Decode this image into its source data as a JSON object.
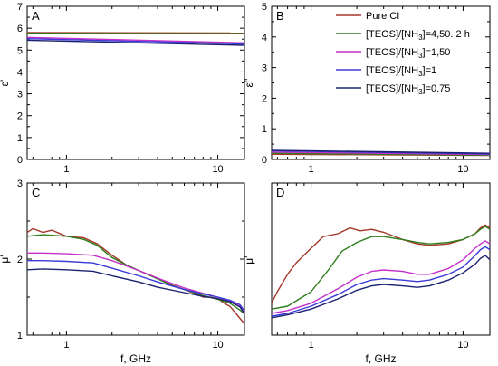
{
  "colors": {
    "pure_ci": "#a5382a",
    "teos_450_2h": "#2e7d1c",
    "teos_150": "#c531c8",
    "teos_1": "#3a3ad8",
    "teos_075": "#1b2370"
  },
  "legend": {
    "items": [
      {
        "label": "Pure CI",
        "color_key": "pure_ci"
      },
      {
        "label": "[TEOS]/[NH3]=4,50. 2 h",
        "color_key": "teos_450_2h"
      },
      {
        "label": "[TEOS]/[NH3]=1,50",
        "color_key": "teos_150"
      },
      {
        "label": "[TEOS]/[NH3]=1",
        "color_key": "teos_1"
      },
      {
        "label": "[TEOS]/[NH3]=0.75",
        "color_key": "teos_075"
      }
    ]
  },
  "chart_data": [
    {
      "type": "line",
      "panel_label": "A",
      "ylabel": "ε'",
      "xlabel": "",
      "x_scale": "log",
      "xlim": [
        0.55,
        15
      ],
      "ylim": [
        0,
        7
      ],
      "x_ticks": [
        1,
        10
      ],
      "y_ticks": [
        0,
        1,
        2,
        3,
        4,
        5,
        6,
        7
      ],
      "series": [
        {
          "name": "Pure CI",
          "x": [
            0.55,
            15
          ],
          "y": [
            5.8,
            5.78
          ]
        },
        {
          "name": "[TEOS]/[NH3]=4,50. 2 h",
          "x": [
            0.55,
            15
          ],
          "y": [
            5.77,
            5.75
          ]
        },
        {
          "name": "[TEOS]/[NH3]=1,50",
          "x": [
            0.55,
            15
          ],
          "y": [
            5.58,
            5.33
          ]
        },
        {
          "name": "[TEOS]/[NH3]=1",
          "x": [
            0.55,
            15
          ],
          "y": [
            5.52,
            5.28
          ]
        },
        {
          "name": "[TEOS]/[NH3]=0.75",
          "x": [
            0.55,
            15
          ],
          "y": [
            5.45,
            5.22
          ]
        }
      ]
    },
    {
      "type": "line",
      "panel_label": "B",
      "ylabel": "ε''",
      "xlabel": "",
      "x_scale": "log",
      "xlim": [
        0.55,
        15
      ],
      "ylim": [
        0,
        5
      ],
      "x_ticks": [
        1,
        10
      ],
      "y_ticks": [
        0,
        1,
        2,
        3,
        4,
        5
      ],
      "series": [
        {
          "name": "Pure CI",
          "x": [
            0.55,
            15
          ],
          "y": [
            0.17,
            0.13
          ]
        },
        {
          "name": "[TEOS]/[NH3]=4,50. 2 h",
          "x": [
            0.55,
            15
          ],
          "y": [
            0.2,
            0.14
          ]
        },
        {
          "name": "[TEOS]/[NH3]=1,50",
          "x": [
            0.55,
            15
          ],
          "y": [
            0.24,
            0.16
          ]
        },
        {
          "name": "[TEOS]/[NH3]=1",
          "x": [
            0.55,
            15
          ],
          "y": [
            0.28,
            0.18
          ]
        },
        {
          "name": "[TEOS]/[NH3]=0.75",
          "x": [
            0.55,
            15
          ],
          "y": [
            0.3,
            0.2
          ]
        }
      ]
    },
    {
      "type": "line",
      "panel_label": "C",
      "ylabel": "μ'",
      "xlabel": "f, GHz",
      "x_scale": "log",
      "xlim": [
        0.55,
        15
      ],
      "ylim": [
        1,
        3
      ],
      "x_ticks": [
        1,
        10
      ],
      "y_ticks": [
        1,
        2,
        3
      ],
      "series": [
        {
          "name": "Pure CI",
          "x": [
            0.55,
            0.6,
            0.7,
            0.8,
            1,
            1.3,
            1.6,
            2,
            2.5,
            3,
            4,
            5,
            6,
            7,
            8,
            9,
            10,
            11,
            12,
            13,
            14,
            15
          ],
          "y": [
            2.35,
            2.4,
            2.35,
            2.38,
            2.3,
            2.28,
            2.2,
            2.05,
            1.92,
            1.85,
            1.75,
            1.66,
            1.6,
            1.55,
            1.5,
            1.5,
            1.48,
            1.42,
            1.38,
            1.3,
            1.22,
            1.15
          ]
        },
        {
          "name": "[TEOS]/[NH3]=4,50. 2 h",
          "x": [
            0.55,
            0.7,
            1,
            1.3,
            1.6,
            2,
            2.5,
            3,
            4,
            5,
            6,
            8,
            10,
            12,
            14,
            15
          ],
          "y": [
            2.3,
            2.32,
            2.3,
            2.26,
            2.18,
            2.02,
            1.92,
            1.85,
            1.74,
            1.65,
            1.6,
            1.52,
            1.47,
            1.42,
            1.33,
            1.28
          ]
        },
        {
          "name": "[TEOS]/[NH3]=1,50",
          "x": [
            0.55,
            0.7,
            1,
            1.5,
            2,
            3,
            4,
            6,
            8,
            10,
            12,
            14,
            15
          ],
          "y": [
            2.08,
            2.08,
            2.07,
            2.05,
            1.98,
            1.85,
            1.75,
            1.62,
            1.55,
            1.5,
            1.45,
            1.38,
            1.3
          ]
        },
        {
          "name": "[TEOS]/[NH3]=1",
          "x": [
            0.55,
            0.7,
            1,
            1.5,
            2,
            3,
            4,
            6,
            8,
            10,
            12,
            14,
            15
          ],
          "y": [
            1.98,
            1.98,
            1.97,
            1.95,
            1.88,
            1.78,
            1.7,
            1.6,
            1.54,
            1.5,
            1.46,
            1.4,
            1.32
          ]
        },
        {
          "name": "[TEOS]/[NH3]=0.75",
          "x": [
            0.55,
            0.7,
            1,
            1.5,
            2,
            3,
            4,
            6,
            8,
            10,
            12,
            14,
            15
          ],
          "y": [
            1.86,
            1.87,
            1.86,
            1.84,
            1.78,
            1.7,
            1.63,
            1.56,
            1.51,
            1.48,
            1.44,
            1.37,
            1.28
          ]
        }
      ]
    },
    {
      "type": "line",
      "panel_label": "D",
      "ylabel": "μ''",
      "xlabel": "f, GHz",
      "x_scale": "log",
      "xlim": [
        0.55,
        15
      ],
      "ylim": [
        0,
        1.05
      ],
      "x_ticks": [
        1,
        10
      ],
      "y_ticks": [],
      "series": [
        {
          "name": "Pure CI",
          "x": [
            0.55,
            0.6,
            0.7,
            0.8,
            1,
            1.2,
            1.5,
            1.8,
            2.1,
            2.5,
            3,
            4,
            5,
            6,
            8,
            10,
            12,
            13,
            14,
            15
          ],
          "y": [
            0.22,
            0.3,
            0.42,
            0.5,
            0.6,
            0.68,
            0.7,
            0.74,
            0.72,
            0.73,
            0.71,
            0.66,
            0.63,
            0.62,
            0.63,
            0.66,
            0.7,
            0.74,
            0.76,
            0.74
          ]
        },
        {
          "name": "[TEOS]/[NH3]=4,50. 2 h",
          "x": [
            0.55,
            0.7,
            1,
            1.3,
            1.6,
            2,
            2.5,
            3,
            4,
            5,
            6,
            8,
            10,
            12,
            13,
            14,
            15
          ],
          "y": [
            0.18,
            0.2,
            0.3,
            0.45,
            0.58,
            0.64,
            0.68,
            0.68,
            0.66,
            0.64,
            0.63,
            0.64,
            0.66,
            0.7,
            0.73,
            0.75,
            0.73
          ]
        },
        {
          "name": "[TEOS]/[NH3]=1,50",
          "x": [
            0.55,
            0.7,
            1,
            1.5,
            2,
            2.5,
            3,
            4,
            5,
            6,
            8,
            10,
            12,
            13,
            14,
            15
          ],
          "y": [
            0.15,
            0.17,
            0.22,
            0.32,
            0.4,
            0.44,
            0.45,
            0.44,
            0.42,
            0.42,
            0.46,
            0.52,
            0.6,
            0.63,
            0.65,
            0.63
          ]
        },
        {
          "name": "[TEOS]/[NH3]=1",
          "x": [
            0.55,
            0.7,
            1,
            1.5,
            2,
            2.5,
            3,
            4,
            5,
            6,
            8,
            10,
            12,
            13,
            14,
            15
          ],
          "y": [
            0.13,
            0.15,
            0.2,
            0.28,
            0.35,
            0.38,
            0.39,
            0.38,
            0.37,
            0.38,
            0.42,
            0.47,
            0.55,
            0.59,
            0.61,
            0.59
          ]
        },
        {
          "name": "[TEOS]/[NH3]=0.75",
          "x": [
            0.55,
            0.7,
            1,
            1.5,
            2,
            2.5,
            3,
            4,
            5,
            6,
            8,
            10,
            12,
            13,
            14,
            15
          ],
          "y": [
            0.12,
            0.14,
            0.18,
            0.25,
            0.31,
            0.34,
            0.35,
            0.34,
            0.33,
            0.34,
            0.38,
            0.43,
            0.49,
            0.53,
            0.55,
            0.52
          ]
        }
      ]
    }
  ]
}
